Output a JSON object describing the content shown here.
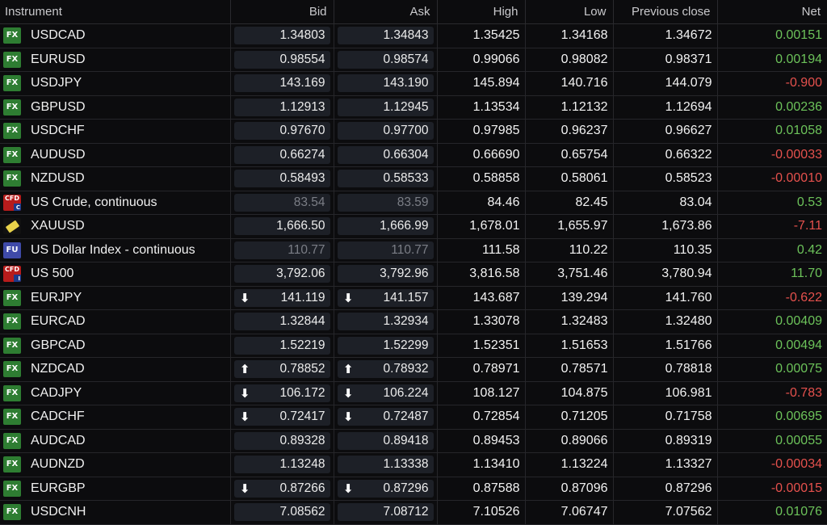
{
  "columns": {
    "instrument": "Instrument",
    "bid": "Bid",
    "ask": "Ask",
    "high": "High",
    "low": "Low",
    "prev_close": "Previous close",
    "net": "Net"
  },
  "colors": {
    "positive": "#6cc25a",
    "negative": "#e5514d",
    "cell_bg": "#1d2027"
  },
  "rows": [
    {
      "badge_type": "fx",
      "badge": "FX",
      "name": "USDCAD",
      "bid": "1.34803",
      "ask": "1.34843",
      "arrow": "",
      "bid_dim": false,
      "high": "1.35425",
      "low": "1.34168",
      "prev": "1.34672",
      "net": "0.00151",
      "dir": "pos"
    },
    {
      "badge_type": "fx",
      "badge": "FX",
      "name": "EURUSD",
      "bid": "0.98554",
      "ask": "0.98574",
      "arrow": "",
      "bid_dim": false,
      "high": "0.99066",
      "low": "0.98082",
      "prev": "0.98371",
      "net": "0.00194",
      "dir": "pos"
    },
    {
      "badge_type": "fx",
      "badge": "FX",
      "name": "USDJPY",
      "bid": "143.169",
      "ask": "143.190",
      "arrow": "",
      "bid_dim": false,
      "high": "145.894",
      "low": "140.716",
      "prev": "144.079",
      "net": "-0.900",
      "dir": "neg"
    },
    {
      "badge_type": "fx",
      "badge": "FX",
      "name": "GBPUSD",
      "bid": "1.12913",
      "ask": "1.12945",
      "arrow": "",
      "bid_dim": false,
      "high": "1.13534",
      "low": "1.12132",
      "prev": "1.12694",
      "net": "0.00236",
      "dir": "pos"
    },
    {
      "badge_type": "fx",
      "badge": "FX",
      "name": "USDCHF",
      "bid": "0.97670",
      "ask": "0.97700",
      "arrow": "",
      "bid_dim": false,
      "high": "0.97985",
      "low": "0.96237",
      "prev": "0.96627",
      "net": "0.01058",
      "dir": "pos"
    },
    {
      "badge_type": "fx",
      "badge": "FX",
      "name": "AUDUSD",
      "bid": "0.66274",
      "ask": "0.66304",
      "arrow": "",
      "bid_dim": false,
      "high": "0.66690",
      "low": "0.65754",
      "prev": "0.66322",
      "net": "-0.00033",
      "dir": "neg"
    },
    {
      "badge_type": "fx",
      "badge": "FX",
      "name": "NZDUSD",
      "bid": "0.58493",
      "ask": "0.58533",
      "arrow": "",
      "bid_dim": false,
      "high": "0.58858",
      "low": "0.58061",
      "prev": "0.58523",
      "net": "-0.00010",
      "dir": "neg"
    },
    {
      "badge_type": "cfd",
      "badge": "CFD",
      "badge_sub": "C",
      "name": "US Crude, continuous",
      "bid": "83.54",
      "ask": "83.59",
      "arrow": "",
      "bid_dim": true,
      "high": "84.46",
      "low": "82.45",
      "prev": "83.04",
      "net": "0.53",
      "dir": "pos"
    },
    {
      "badge_type": "gold",
      "badge": "",
      "name": "XAUUSD",
      "bid": "1,666.50",
      "ask": "1,666.99",
      "arrow": "",
      "bid_dim": false,
      "high": "1,678.01",
      "low": "1,655.97",
      "prev": "1,673.86",
      "net": "-7.11",
      "dir": "neg"
    },
    {
      "badge_type": "fu",
      "badge": "FU",
      "name": "US Dollar Index - continuous",
      "bid": "110.77",
      "ask": "110.77",
      "arrow": "",
      "bid_dim": true,
      "high": "111.58",
      "low": "110.22",
      "prev": "110.35",
      "net": "0.42",
      "dir": "pos"
    },
    {
      "badge_type": "cfd",
      "badge": "CFD",
      "badge_sub": "I",
      "name": "US 500",
      "bid": "3,792.06",
      "ask": "3,792.96",
      "arrow": "",
      "bid_dim": false,
      "high": "3,816.58",
      "low": "3,751.46",
      "prev": "3,780.94",
      "net": "11.70",
      "dir": "pos"
    },
    {
      "badge_type": "fx",
      "badge": "FX",
      "name": "EURJPY",
      "bid": "141.119",
      "ask": "141.157",
      "arrow": "down",
      "bid_dim": false,
      "high": "143.687",
      "low": "139.294",
      "prev": "141.760",
      "net": "-0.622",
      "dir": "neg"
    },
    {
      "badge_type": "fx",
      "badge": "FX",
      "name": "EURCAD",
      "bid": "1.32844",
      "ask": "1.32934",
      "arrow": "",
      "bid_dim": false,
      "high": "1.33078",
      "low": "1.32483",
      "prev": "1.32480",
      "net": "0.00409",
      "dir": "pos"
    },
    {
      "badge_type": "fx",
      "badge": "FX",
      "name": "GBPCAD",
      "bid": "1.52219",
      "ask": "1.52299",
      "arrow": "",
      "bid_dim": false,
      "high": "1.52351",
      "low": "1.51653",
      "prev": "1.51766",
      "net": "0.00494",
      "dir": "pos"
    },
    {
      "badge_type": "fx",
      "badge": "FX",
      "name": "NZDCAD",
      "bid": "0.78852",
      "ask": "0.78932",
      "arrow": "up",
      "bid_dim": false,
      "high": "0.78971",
      "low": "0.78571",
      "prev": "0.78818",
      "net": "0.00075",
      "dir": "pos"
    },
    {
      "badge_type": "fx",
      "badge": "FX",
      "name": "CADJPY",
      "bid": "106.172",
      "ask": "106.224",
      "arrow": "down",
      "bid_dim": false,
      "high": "108.127",
      "low": "104.875",
      "prev": "106.981",
      "net": "-0.783",
      "dir": "neg"
    },
    {
      "badge_type": "fx",
      "badge": "FX",
      "name": "CADCHF",
      "bid": "0.72417",
      "ask": "0.72487",
      "arrow": "down",
      "bid_dim": false,
      "high": "0.72854",
      "low": "0.71205",
      "prev": "0.71758",
      "net": "0.00695",
      "dir": "pos"
    },
    {
      "badge_type": "fx",
      "badge": "FX",
      "name": "AUDCAD",
      "bid": "0.89328",
      "ask": "0.89418",
      "arrow": "",
      "bid_dim": false,
      "high": "0.89453",
      "low": "0.89066",
      "prev": "0.89319",
      "net": "0.00055",
      "dir": "pos"
    },
    {
      "badge_type": "fx",
      "badge": "FX",
      "name": "AUDNZD",
      "bid": "1.13248",
      "ask": "1.13338",
      "arrow": "",
      "bid_dim": false,
      "high": "1.13410",
      "low": "1.13224",
      "prev": "1.13327",
      "net": "-0.00034",
      "dir": "neg"
    },
    {
      "badge_type": "fx",
      "badge": "FX",
      "name": "EURGBP",
      "bid": "0.87266",
      "ask": "0.87296",
      "arrow": "down",
      "bid_dim": false,
      "high": "0.87588",
      "low": "0.87096",
      "prev": "0.87296",
      "net": "-0.00015",
      "dir": "neg"
    },
    {
      "badge_type": "fx",
      "badge": "FX",
      "name": "USDCNH",
      "bid": "7.08562",
      "ask": "7.08712",
      "arrow": "",
      "bid_dim": false,
      "high": "7.10526",
      "low": "7.06747",
      "prev": "7.07562",
      "net": "0.01076",
      "dir": "pos"
    }
  ]
}
